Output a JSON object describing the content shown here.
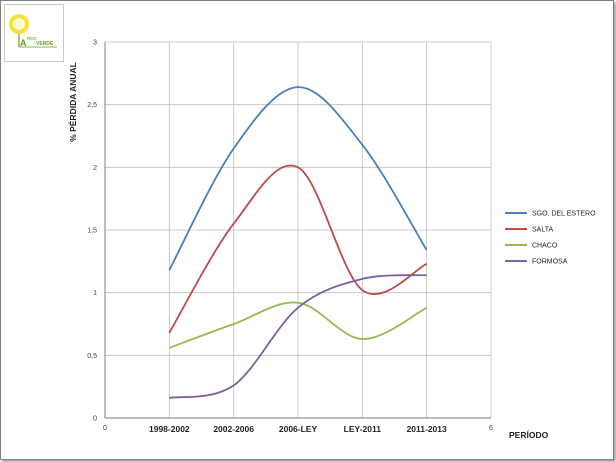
{
  "logo": {
    "small_text": "RED",
    "main_text": "VERDE",
    "letter": "A"
  },
  "chart_data": {
    "type": "line",
    "title": "",
    "xlabel": "PERÍODO",
    "ylabel": "% PÉRDIDA ANUAL",
    "xlim": [
      0,
      6
    ],
    "ylim": [
      0,
      3
    ],
    "y_ticks": [
      "0",
      "0,5",
      "1",
      "1,5",
      "2",
      "2,5",
      "3"
    ],
    "x_end_ticks": [
      "0",
      "6"
    ],
    "categories": [
      "1998-2002",
      "2002-2006",
      "2006-LEY",
      "LEY-2011",
      "2011-2013"
    ],
    "grid": true,
    "legend_position": "right",
    "series": [
      {
        "name": "SGO. DEL ESTERO",
        "color": "#4a7ebb",
        "values": [
          1.18,
          2.15,
          2.64,
          2.18,
          1.34
        ]
      },
      {
        "name": "SALTA",
        "color": "#be4b48",
        "values": [
          0.68,
          1.55,
          2.0,
          1.02,
          1.23
        ]
      },
      {
        "name": "CHACO",
        "color": "#98b954",
        "values": [
          0.56,
          0.75,
          0.92,
          0.63,
          0.88
        ]
      },
      {
        "name": "FORMOSA",
        "color": "#7d60a0",
        "values": [
          0.16,
          0.26,
          0.88,
          1.11,
          1.14
        ]
      }
    ]
  }
}
